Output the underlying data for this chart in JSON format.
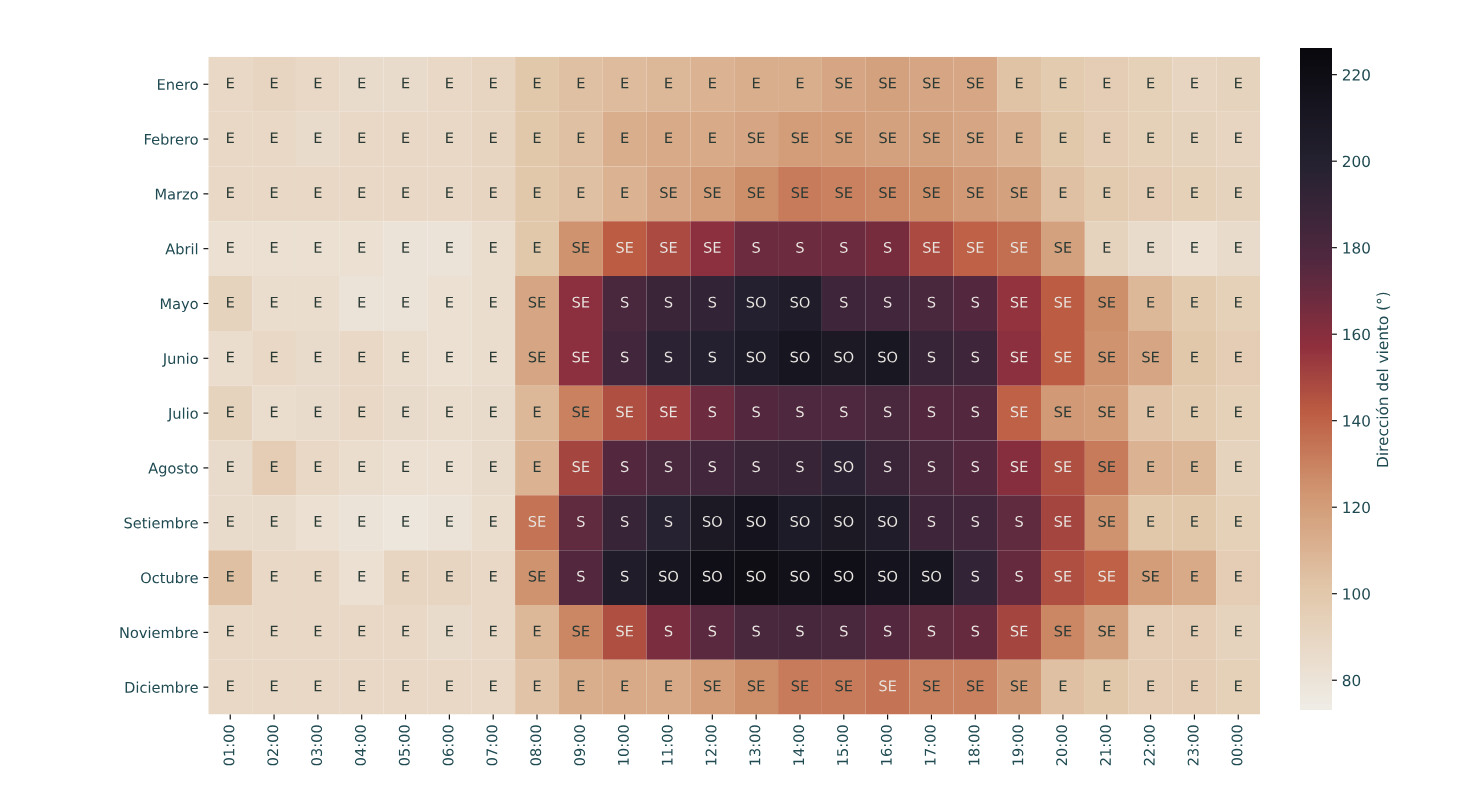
{
  "chart_data": {
    "type": "heatmap",
    "categories": [
      "01:00",
      "02:00",
      "03:00",
      "04:00",
      "05:00",
      "06:00",
      "07:00",
      "08:00",
      "09:00",
      "10:00",
      "11:00",
      "12:00",
      "13:00",
      "14:00",
      "15:00",
      "16:00",
      "17:00",
      "18:00",
      "19:00",
      "20:00",
      "21:00",
      "22:00",
      "23:00",
      "00:00"
    ],
    "y_categories": [
      "Enero",
      "Febrero",
      "Marzo",
      "Abril",
      "Mayo",
      "Junio",
      "Julio",
      "Agosto",
      "Setiembre",
      "Octubre",
      "Noviembre",
      "Diciembre"
    ],
    "cells": [
      [
        88,
        90,
        88,
        86,
        86,
        88,
        90,
        100,
        104,
        106,
        108,
        110,
        112,
        112,
        116,
        118,
        116,
        115,
        103,
        98,
        96,
        94,
        90,
        92
      ],
      [
        88,
        88,
        86,
        88,
        88,
        88,
        90,
        100,
        104,
        112,
        114,
        114,
        116,
        120,
        120,
        118,
        118,
        116,
        110,
        100,
        96,
        94,
        92,
        90
      ],
      [
        88,
        88,
        88,
        88,
        88,
        88,
        90,
        100,
        104,
        110,
        116,
        120,
        126,
        132,
        130,
        128,
        126,
        122,
        118,
        104,
        98,
        96,
        94,
        92
      ],
      [
        82,
        82,
        82,
        82,
        80,
        80,
        84,
        100,
        124,
        142,
        148,
        158,
        168,
        168,
        168,
        165,
        148,
        140,
        136,
        118,
        92,
        86,
        82,
        86
      ],
      [
        92,
        84,
        84,
        80,
        80,
        82,
        84,
        116,
        158,
        180,
        188,
        192,
        200,
        204,
        186,
        184,
        180,
        176,
        156,
        142,
        126,
        108,
        98,
        94
      ],
      [
        84,
        88,
        86,
        88,
        84,
        82,
        84,
        116,
        158,
        184,
        196,
        200,
        206,
        212,
        208,
        210,
        190,
        186,
        158,
        142,
        124,
        116,
        100,
        96
      ],
      [
        92,
        84,
        86,
        88,
        86,
        84,
        86,
        108,
        130,
        146,
        152,
        168,
        176,
        178,
        178,
        180,
        176,
        176,
        140,
        122,
        120,
        102,
        98,
        94
      ],
      [
        86,
        96,
        88,
        84,
        82,
        82,
        86,
        110,
        150,
        176,
        180,
        184,
        188,
        190,
        196,
        188,
        180,
        176,
        160,
        146,
        132,
        110,
        108,
        92
      ],
      [
        86,
        86,
        82,
        80,
        78,
        80,
        84,
        134,
        172,
        190,
        198,
        208,
        214,
        206,
        208,
        204,
        186,
        184,
        172,
        150,
        124,
        100,
        100,
        94
      ],
      [
        104,
        88,
        88,
        82,
        90,
        90,
        88,
        124,
        176,
        204,
        212,
        218,
        220,
        216,
        218,
        214,
        212,
        192,
        170,
        146,
        140,
        120,
        114,
        96
      ],
      [
        88,
        88,
        88,
        88,
        88,
        86,
        88,
        108,
        128,
        146,
        164,
        174,
        180,
        182,
        180,
        176,
        172,
        170,
        150,
        128,
        118,
        96,
        96,
        92
      ],
      [
        88,
        88,
        88,
        88,
        88,
        88,
        88,
        102,
        112,
        114,
        114,
        120,
        126,
        132,
        132,
        134,
        130,
        130,
        122,
        104,
        100,
        96,
        96,
        94
      ]
    ],
    "cell_labels": [
      [
        "E",
        "E",
        "E",
        "E",
        "E",
        "E",
        "E",
        "E",
        "E",
        "E",
        "E",
        "E",
        "E",
        "E",
        "SE",
        "SE",
        "SE",
        "SE",
        "E",
        "E",
        "E",
        "E",
        "E",
        "E"
      ],
      [
        "E",
        "E",
        "E",
        "E",
        "E",
        "E",
        "E",
        "E",
        "E",
        "E",
        "E",
        "E",
        "SE",
        "SE",
        "SE",
        "SE",
        "SE",
        "SE",
        "E",
        "E",
        "E",
        "E",
        "E",
        "E"
      ],
      [
        "E",
        "E",
        "E",
        "E",
        "E",
        "E",
        "E",
        "E",
        "E",
        "E",
        "SE",
        "SE",
        "SE",
        "SE",
        "SE",
        "SE",
        "SE",
        "SE",
        "SE",
        "E",
        "E",
        "E",
        "E",
        "E"
      ],
      [
        "E",
        "E",
        "E",
        "E",
        "E",
        "E",
        "E",
        "E",
        "SE",
        "SE",
        "SE",
        "SE",
        "S",
        "S",
        "S",
        "S",
        "SE",
        "SE",
        "SE",
        "SE",
        "E",
        "E",
        "E",
        "E"
      ],
      [
        "E",
        "E",
        "E",
        "E",
        "E",
        "E",
        "E",
        "SE",
        "SE",
        "S",
        "S",
        "S",
        "SO",
        "SO",
        "S",
        "S",
        "S",
        "S",
        "SE",
        "SE",
        "SE",
        "E",
        "E",
        "E"
      ],
      [
        "E",
        "E",
        "E",
        "E",
        "E",
        "E",
        "E",
        "SE",
        "SE",
        "S",
        "S",
        "S",
        "SO",
        "SO",
        "SO",
        "SO",
        "S",
        "S",
        "SE",
        "SE",
        "SE",
        "SE",
        "E",
        "E"
      ],
      [
        "E",
        "E",
        "E",
        "E",
        "E",
        "E",
        "E",
        "E",
        "SE",
        "SE",
        "SE",
        "S",
        "S",
        "S",
        "S",
        "S",
        "S",
        "S",
        "SE",
        "SE",
        "SE",
        "E",
        "E",
        "E"
      ],
      [
        "E",
        "E",
        "E",
        "E",
        "E",
        "E",
        "E",
        "E",
        "SE",
        "S",
        "S",
        "S",
        "S",
        "S",
        "SO",
        "S",
        "S",
        "S",
        "SE",
        "SE",
        "SE",
        "E",
        "E",
        "E"
      ],
      [
        "E",
        "E",
        "E",
        "E",
        "E",
        "E",
        "E",
        "SE",
        "S",
        "S",
        "S",
        "SO",
        "SO",
        "SO",
        "SO",
        "SO",
        "S",
        "S",
        "S",
        "SE",
        "SE",
        "E",
        "E",
        "E"
      ],
      [
        "E",
        "E",
        "E",
        "E",
        "E",
        "E",
        "E",
        "SE",
        "S",
        "S",
        "SO",
        "SO",
        "SO",
        "SO",
        "SO",
        "SO",
        "SO",
        "S",
        "S",
        "SE",
        "SE",
        "SE",
        "E",
        "E"
      ],
      [
        "E",
        "E",
        "E",
        "E",
        "E",
        "E",
        "E",
        "E",
        "SE",
        "SE",
        "S",
        "S",
        "S",
        "S",
        "S",
        "S",
        "S",
        "S",
        "SE",
        "SE",
        "SE",
        "E",
        "E",
        "E"
      ],
      [
        "E",
        "E",
        "E",
        "E",
        "E",
        "E",
        "E",
        "E",
        "E",
        "E",
        "E",
        "SE",
        "SE",
        "SE",
        "SE",
        "SE",
        "SE",
        "SE",
        "SE",
        "E",
        "E",
        "E",
        "E",
        "E"
      ]
    ],
    "clabel": "Dirección del viento (°)",
    "clim": [
      73,
      226
    ],
    "cticks": [
      80,
      100,
      120,
      140,
      160,
      180,
      200,
      220
    ]
  }
}
